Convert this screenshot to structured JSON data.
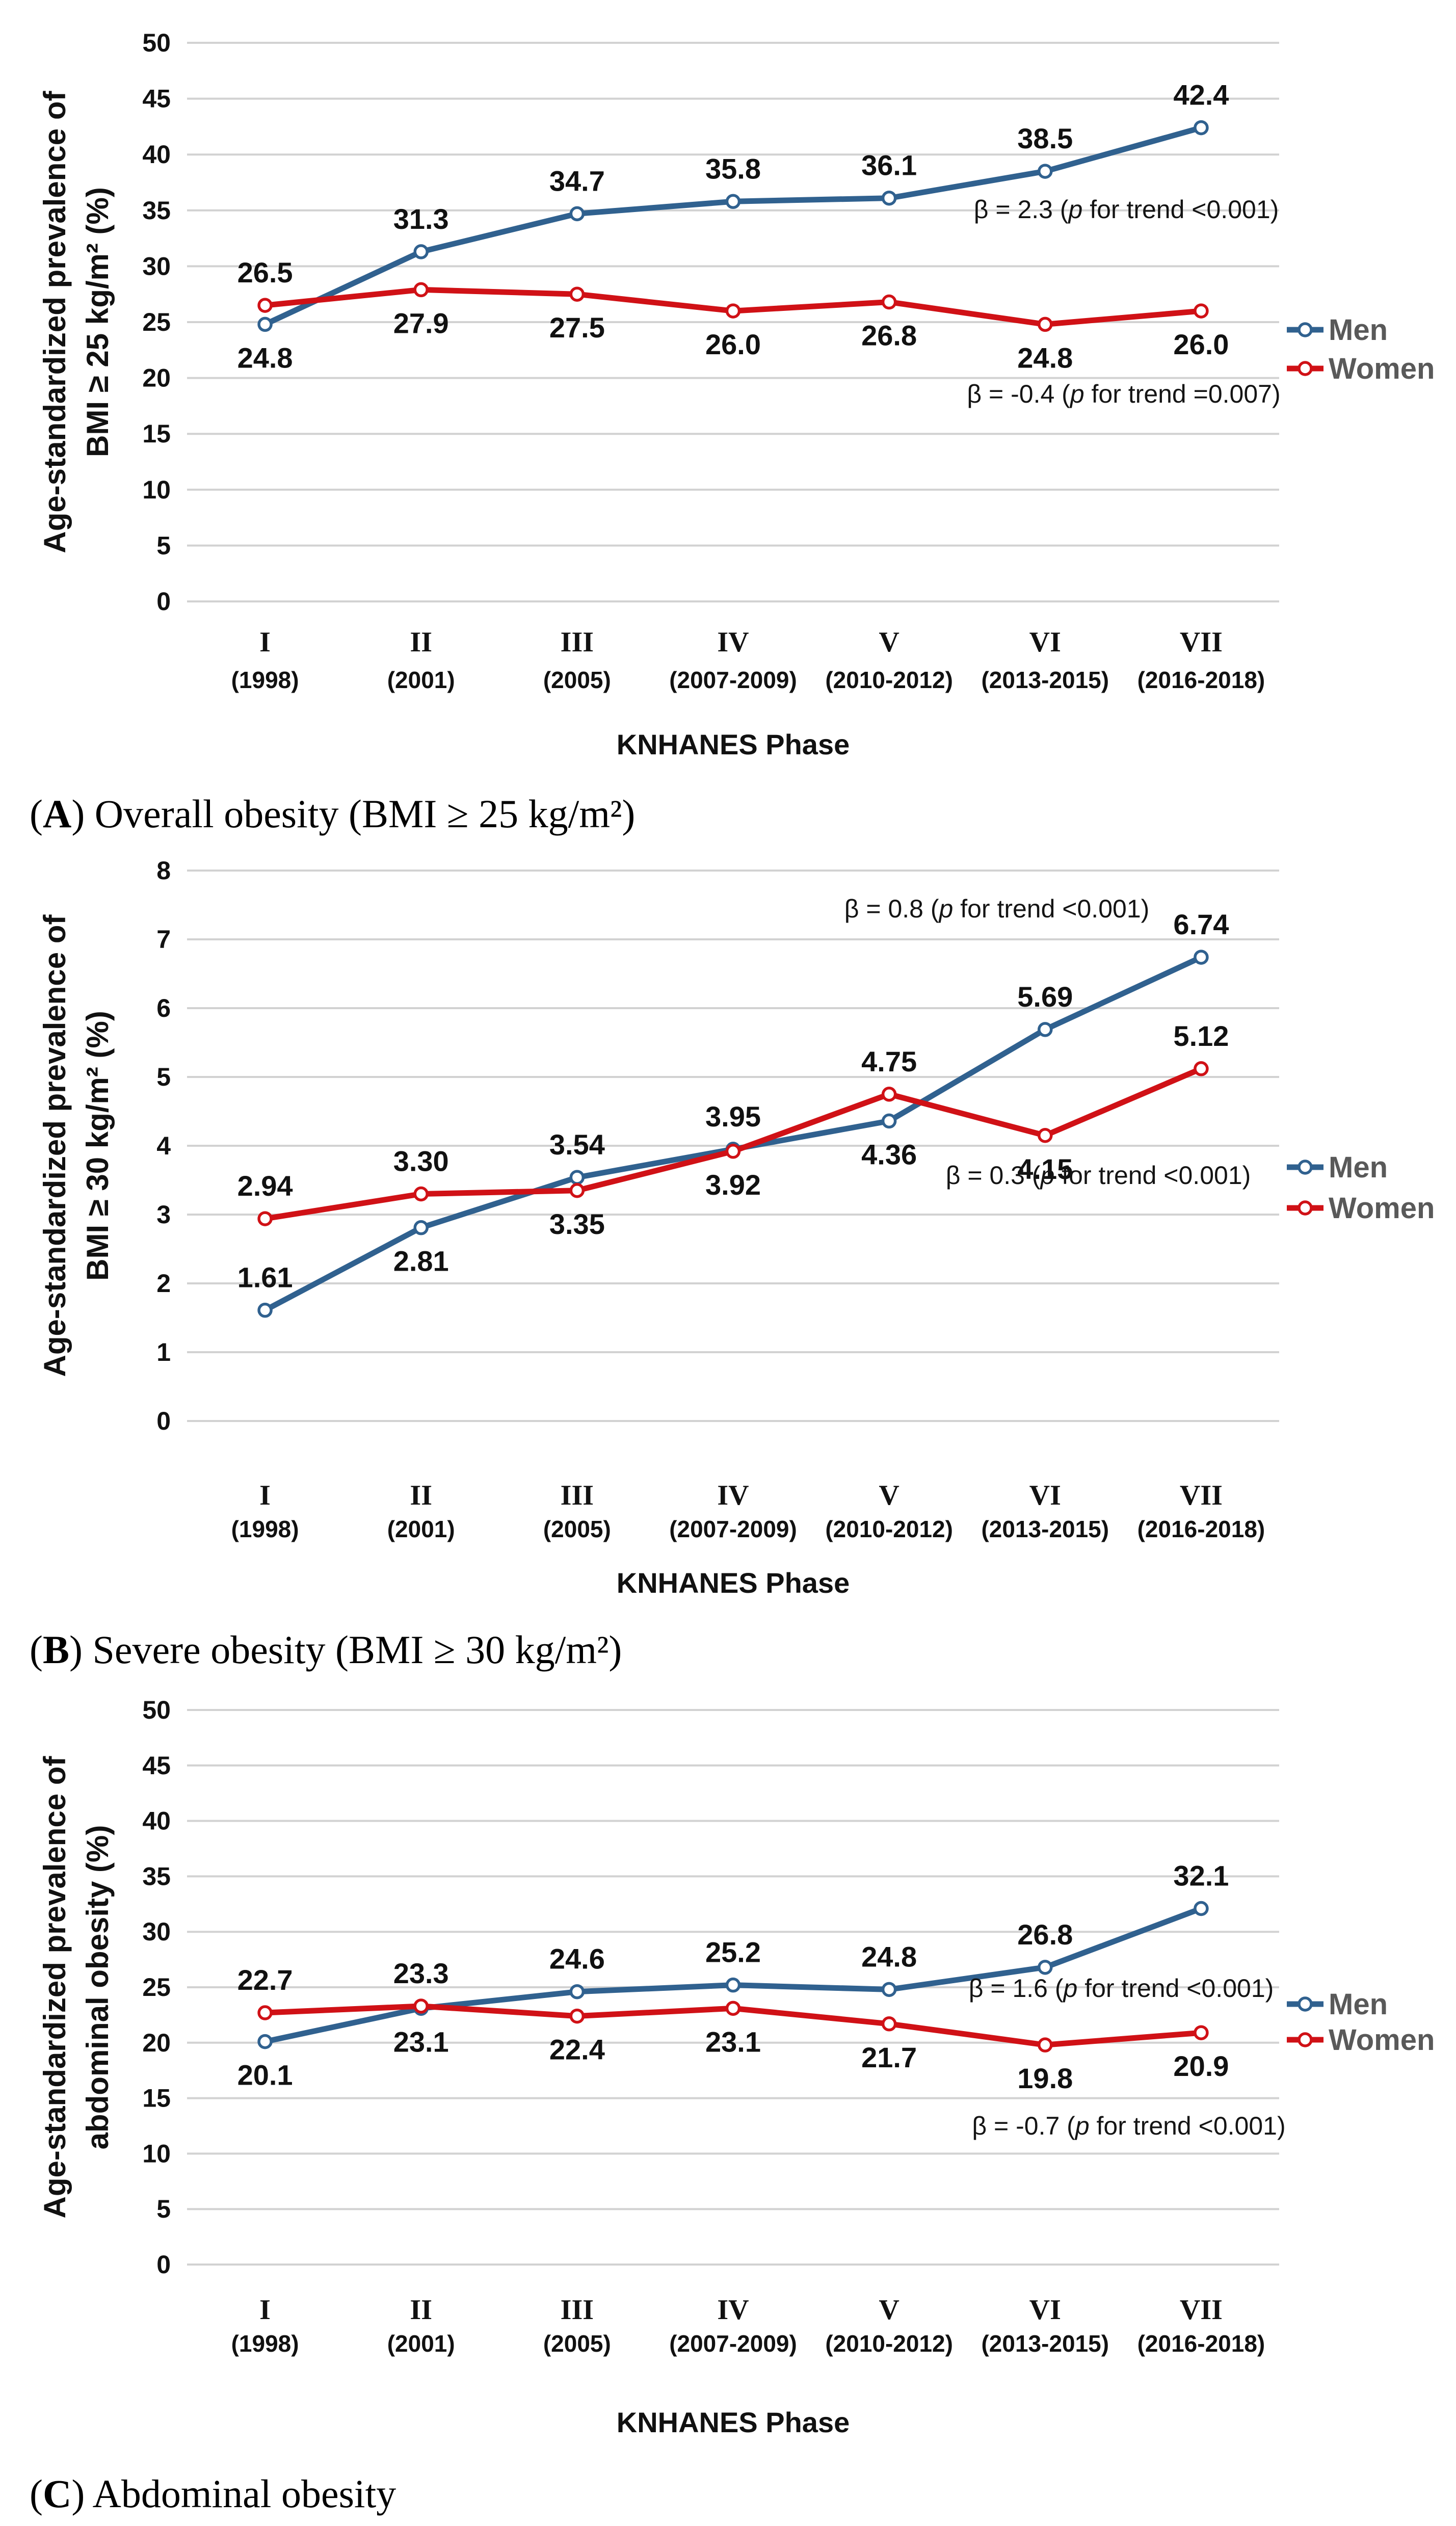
{
  "figure": {
    "x_axis_title": "KNHANES Phase",
    "phases": [
      {
        "roman": "I",
        "years": "(1998)"
      },
      {
        "roman": "II",
        "years": "(2001)"
      },
      {
        "roman": "III",
        "years": "(2005)"
      },
      {
        "roman": "IV",
        "years": "(2007-2009)"
      },
      {
        "roman": "V",
        "years": "(2010-2012)"
      },
      {
        "roman": "VI",
        "years": "(2013-2015)"
      },
      {
        "roman": "VII",
        "years": "(2016-2018)"
      }
    ],
    "legend": {
      "men": "Men",
      "women": "Women"
    },
    "colors": {
      "men": "#30618f",
      "women": "#d01116",
      "legend_text": "#595959",
      "gridline": "#d2d2d2",
      "text": "#111111"
    }
  },
  "chart_data": [
    {
      "id": "A",
      "type": "line",
      "ylabel_lines": [
        "Age-standardized prevalence of",
        "BMI ≥ 25 kg/m² (%)"
      ],
      "ylim": [
        0,
        50
      ],
      "ystep": 5,
      "grid": true,
      "legend_position": "right",
      "categories": [
        "I (1998)",
        "II (2001)",
        "III (2005)",
        "IV (2007-2009)",
        "V (2010-2012)",
        "VI (2013-2015)",
        "VII (2016-2018)"
      ],
      "series": [
        {
          "name": "Men",
          "color_key": "men",
          "decimals": 1,
          "values": [
            24.8,
            31.3,
            34.7,
            35.8,
            36.1,
            38.5,
            42.4
          ],
          "label_side": [
            "below",
            "above",
            "above",
            "above",
            "above",
            "above",
            "above"
          ],
          "annotation": {
            "beta": "β = 2.3",
            "trend": "(p for trend <0.001)"
          }
        },
        {
          "name": "Women",
          "color_key": "women",
          "decimals": 1,
          "values": [
            26.5,
            27.9,
            27.5,
            26.0,
            26.8,
            24.8,
            26.0
          ],
          "label_side": [
            "above",
            "below",
            "below",
            "below",
            "below",
            "below",
            "below"
          ],
          "annotation": {
            "beta": "β = -0.4",
            "trend": "(p for trend =0.007)"
          }
        }
      ],
      "caption": {
        "open": "(",
        "letter": "A",
        "rest": ") Overall obesity (BMI ≥ 25 kg/m²)"
      }
    },
    {
      "id": "B",
      "type": "line",
      "ylabel_lines": [
        "Age-standardized prevalence of",
        "BMI ≥ 30 kg/m² (%)"
      ],
      "ylim": [
        0,
        8
      ],
      "ystep": 1,
      "grid": true,
      "legend_position": "right",
      "categories": [
        "I (1998)",
        "II (2001)",
        "III (2005)",
        "IV (2007-2009)",
        "V (2010-2012)",
        "VI (2013-2015)",
        "VII (2016-2018)"
      ],
      "series": [
        {
          "name": "Men",
          "color_key": "men",
          "decimals": 2,
          "values": [
            1.61,
            2.81,
            3.54,
            3.95,
            4.36,
            5.69,
            6.74
          ],
          "label_side": [
            "above",
            "below",
            "above",
            "above",
            "below",
            "above",
            "above"
          ],
          "annotation": {
            "beta": "β = 0.8",
            "trend": "(p for trend <0.001)"
          }
        },
        {
          "name": "Women",
          "color_key": "women",
          "decimals": 2,
          "values": [
            2.94,
            3.3,
            3.35,
            3.92,
            4.75,
            4.15,
            5.12
          ],
          "label_side": [
            "above",
            "above",
            "below",
            "below",
            "above",
            "below",
            "above"
          ],
          "annotation": {
            "beta": "β = 0.3",
            "trend": "(p for trend <0.001)"
          }
        }
      ],
      "caption": {
        "open": "(",
        "letter": "B",
        "rest": ") Severe obesity (BMI ≥ 30 kg/m²)"
      }
    },
    {
      "id": "C",
      "type": "line",
      "ylabel_lines": [
        "Age-standardized prevalence of",
        "abdominal obesity (%)"
      ],
      "ylim": [
        0,
        50
      ],
      "ystep": 5,
      "grid": true,
      "legend_position": "right",
      "categories": [
        "I (1998)",
        "II (2001)",
        "III (2005)",
        "IV (2007-2009)",
        "V (2010-2012)",
        "VI (2013-2015)",
        "VII (2016-2018)"
      ],
      "series": [
        {
          "name": "Men",
          "color_key": "men",
          "decimals": 1,
          "values": [
            20.1,
            23.1,
            24.6,
            25.2,
            24.8,
            26.8,
            32.1
          ],
          "label_side": [
            "below",
            "below",
            "above",
            "above",
            "above",
            "above",
            "above"
          ],
          "annotation": {
            "beta": "β = 1.6",
            "trend": "(p for trend <0.001)"
          }
        },
        {
          "name": "Women",
          "color_key": "women",
          "decimals": 1,
          "values": [
            22.7,
            23.3,
            22.4,
            23.1,
            21.7,
            19.8,
            20.9
          ],
          "label_side": [
            "above",
            "above",
            "below",
            "below",
            "below",
            "below",
            "below"
          ],
          "annotation": {
            "beta": "β = -0.7",
            "trend": "(p for trend <0.001)"
          }
        }
      ],
      "caption": {
        "open": "(",
        "letter": "C",
        "rest": ") Abdominal obesity"
      }
    }
  ]
}
